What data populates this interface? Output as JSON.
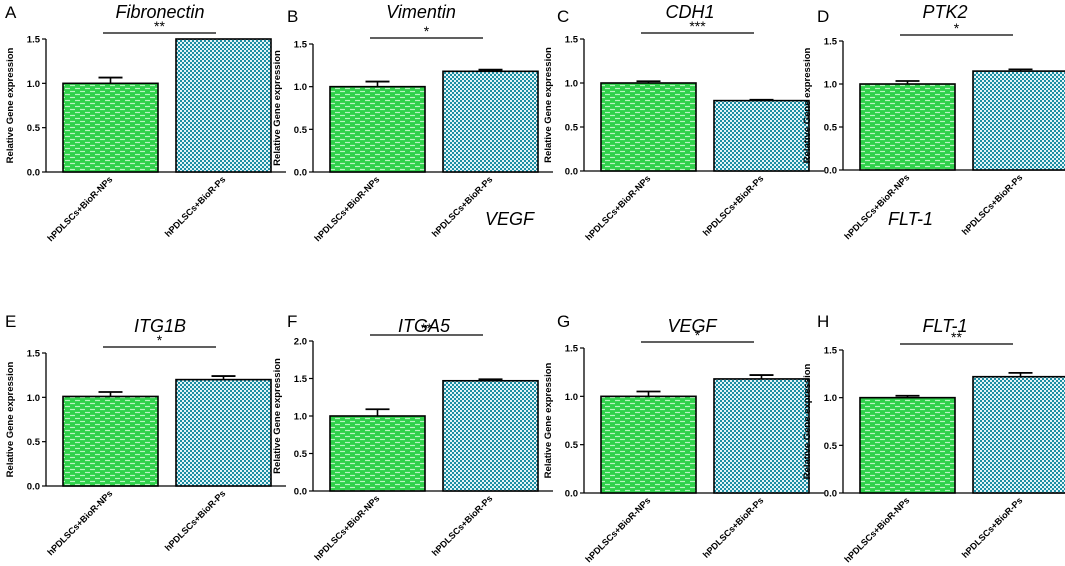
{
  "colors": {
    "bar1_fill": "#2fd14a",
    "bar1_pattern": "#b9f2c2",
    "bar2_fill": "#1c8ea3",
    "bar2_pattern": "#e3f4f7",
    "axis": "#000000"
  },
  "stray_titles": [
    "VEGF",
    "FLT-1"
  ],
  "chart_data": [
    {
      "panel": "A",
      "type": "bar",
      "title": "Fibronectin",
      "ylabel": "Relative Gene expression",
      "categories": [
        "hPDLSCs+BioR-NPs",
        "hPDLSCs+BioR-Ps"
      ],
      "values": [
        1.0,
        1.5
      ],
      "errors": [
        0.065,
        0.0
      ],
      "ylim": [
        0,
        1.5
      ],
      "yticks": [
        "0.0",
        "0.5",
        "1.0",
        "1.5"
      ],
      "significance": "**"
    },
    {
      "panel": "B",
      "type": "bar",
      "title": "Vimentin",
      "ylabel": "Relative Gene expression",
      "categories": [
        "hPDLSCs+BioR-NPs",
        "hPDLSCs+BioR-Ps"
      ],
      "values": [
        1.0,
        1.18
      ],
      "errors": [
        0.06,
        0.02
      ],
      "ylim": [
        0,
        1.5
      ],
      "yticks": [
        "0.0",
        "0.5",
        "1.0",
        "1.5"
      ],
      "significance": "*"
    },
    {
      "panel": "C",
      "type": "bar",
      "title": "CDH1",
      "ylabel": "Relative Gene expression",
      "categories": [
        "hPDLSCs+BioR-NPs",
        "hPDLSCs+BioR-Ps"
      ],
      "values": [
        1.0,
        0.8
      ],
      "errors": [
        0.02,
        0.01
      ],
      "ylim": [
        0,
        1.5
      ],
      "yticks": [
        "0.0",
        "0.5",
        "1.0",
        "1.5"
      ],
      "significance": "***"
    },
    {
      "panel": "D",
      "type": "bar",
      "title": "PTK2",
      "ylabel": "Relative Gene expression",
      "categories": [
        "hPDLSCs+BioR-NPs",
        "hPDLSCs+BioR-Ps"
      ],
      "values": [
        1.0,
        1.15
      ],
      "errors": [
        0.035,
        0.02
      ],
      "ylim": [
        0,
        1.5
      ],
      "yticks": [
        "0.0",
        "0.5",
        "1.0",
        "1.5"
      ],
      "significance": "*"
    },
    {
      "panel": "E",
      "type": "bar",
      "title": "ITG1B",
      "ylabel": "Relative Gene expression",
      "categories": [
        "hPDLSCs+BioR-NPs",
        "hPDLSCs+BioR-Ps"
      ],
      "values": [
        1.01,
        1.2
      ],
      "errors": [
        0.05,
        0.04
      ],
      "ylim": [
        0,
        1.5
      ],
      "yticks": [
        "0.0",
        "0.5",
        "1.0",
        "1.5"
      ],
      "significance": "*"
    },
    {
      "panel": "F",
      "type": "bar",
      "title": "ITGA5",
      "ylabel": "Relative Gene expression",
      "categories": [
        "hPDLSCs+BioR-NPs",
        "hPDLSCs+BioR-Ps"
      ],
      "values": [
        1.0,
        1.47
      ],
      "errors": [
        0.09,
        0.02
      ],
      "ylim": [
        0,
        2.0
      ],
      "yticks": [
        "0.0",
        "0.5",
        "1.0",
        "1.5",
        "2.0"
      ],
      "significance": "**"
    },
    {
      "panel": "G",
      "type": "bar",
      "title": "VEGF",
      "ylabel": "Relative Gene expression",
      "categories": [
        "hPDLSCs+BioR-NPs",
        "hPDLSCs+BioR-Ps"
      ],
      "values": [
        1.0,
        1.18
      ],
      "errors": [
        0.05,
        0.04
      ],
      "ylim": [
        0,
        1.5
      ],
      "yticks": [
        "0.0",
        "0.5",
        "1.0",
        "1.5"
      ],
      "significance": "*"
    },
    {
      "panel": "H",
      "type": "bar",
      "title": "FLT-1",
      "ylabel": "Relative Gene expression",
      "categories": [
        "hPDLSCs+BioR-NPs",
        "hPDLSCs+BioR-Ps"
      ],
      "values": [
        1.0,
        1.22
      ],
      "errors": [
        0.02,
        0.04
      ],
      "ylim": [
        0,
        1.5
      ],
      "yticks": [
        "0.0",
        "0.5",
        "1.0",
        "1.5"
      ],
      "significance": "**"
    }
  ]
}
